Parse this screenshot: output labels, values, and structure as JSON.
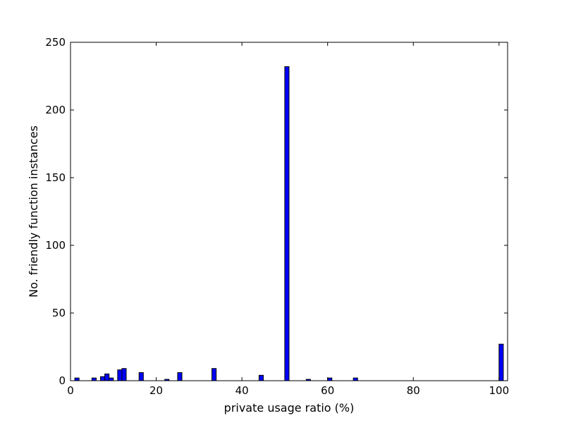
{
  "chart_data": {
    "type": "bar",
    "xlabel": "private usage ratio (%)",
    "ylabel": "No. friendly function instances",
    "xlim": [
      0,
      102
    ],
    "ylim": [
      0,
      250
    ],
    "xticks": [
      0,
      20,
      40,
      60,
      80,
      100
    ],
    "yticks": [
      0,
      50,
      100,
      150,
      200,
      250
    ],
    "grid": false,
    "bin_width": 1,
    "bar_color": "#0000ff",
    "edge_color": "#000000",
    "bars": [
      {
        "x": 1,
        "value": 2
      },
      {
        "x": 5,
        "value": 2
      },
      {
        "x": 7,
        "value": 3
      },
      {
        "x": 8,
        "value": 5
      },
      {
        "x": 9,
        "value": 2
      },
      {
        "x": 11,
        "value": 8
      },
      {
        "x": 12,
        "value": 9
      },
      {
        "x": 16,
        "value": 6
      },
      {
        "x": 22,
        "value": 1
      },
      {
        "x": 25,
        "value": 6
      },
      {
        "x": 33,
        "value": 9
      },
      {
        "x": 44,
        "value": 4
      },
      {
        "x": 50,
        "value": 232
      },
      {
        "x": 55,
        "value": 1
      },
      {
        "x": 60,
        "value": 2
      },
      {
        "x": 66,
        "value": 2
      },
      {
        "x": 100,
        "value": 27
      }
    ]
  }
}
